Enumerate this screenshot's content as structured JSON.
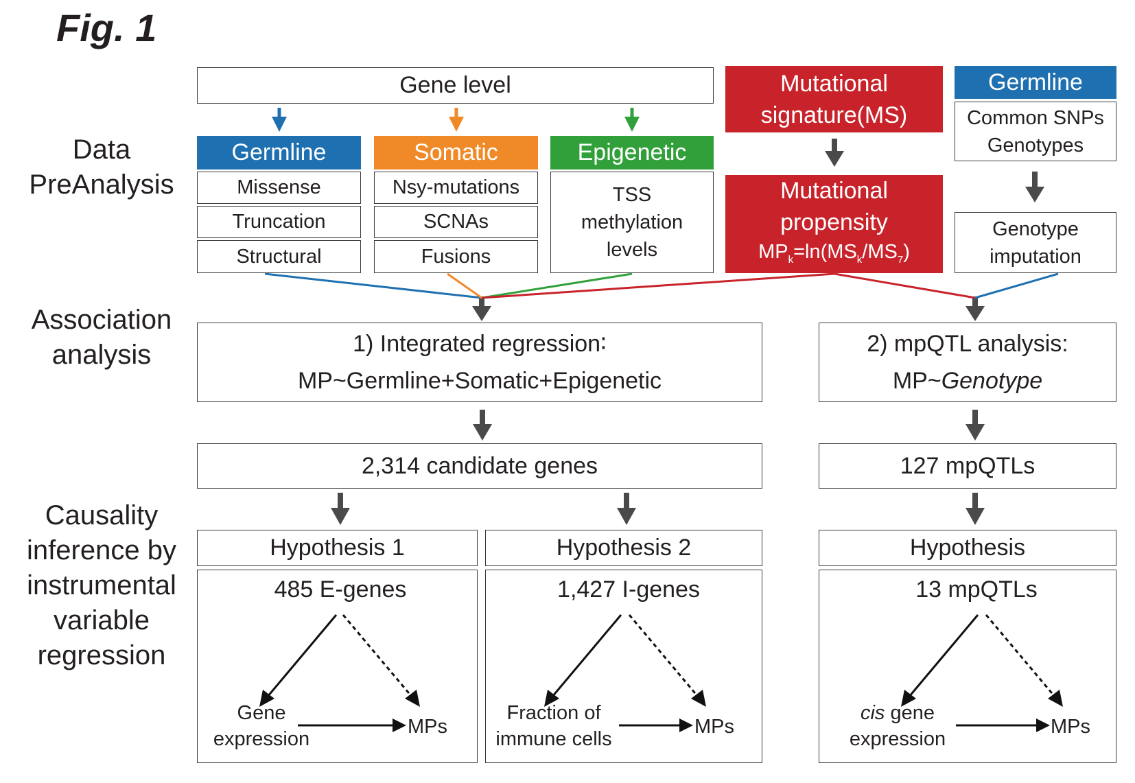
{
  "figure_title": "Fig. 1",
  "row_labels": {
    "data": [
      "Data",
      "PreAnalysis"
    ],
    "association": [
      "Association",
      "analysis"
    ],
    "causality": [
      "Causality",
      "inference by",
      "instrumental",
      "variable",
      "regression"
    ]
  },
  "colors": {
    "germline": "#1f70b0",
    "somatic": "#f08a28",
    "epigenetic": "#31a03a",
    "mutational": "#c8232a",
    "arrow_gray": "#4a4a4a"
  },
  "gene_level": {
    "title": "Gene level",
    "germline": {
      "header": "Germline",
      "items": [
        "Missense",
        "Truncation",
        "Structural"
      ]
    },
    "somatic": {
      "header": "Somatic",
      "items": [
        "Nsy-mutations",
        "SCNAs",
        "Fusions"
      ]
    },
    "epigenetic": {
      "header": "Epigenetic",
      "lines": [
        "TSS",
        "methylation",
        "levels"
      ]
    }
  },
  "mutational_signature": {
    "lines": [
      "Mutational",
      "signature(MS)"
    ]
  },
  "mutational_propensity": {
    "lines": [
      "Mutational",
      "propensity"
    ],
    "formula": {
      "p1": "MP",
      "s1": "k",
      "p2": "=ln(MS",
      "s2": "k",
      "p3": "/MS",
      "s3": "7",
      "p4": ")"
    }
  },
  "germline_right": {
    "header": "Germline",
    "lines": [
      "Common SNPs",
      "Genotypes"
    ],
    "imputation": [
      "Genotype",
      "imputation"
    ]
  },
  "association": {
    "left": {
      "line1": "1) Integrated regression∶",
      "line2": "MP~Germline+Somatic+Epigenetic"
    },
    "right": {
      "line1": "2) mpQTL analysis:",
      "line2_prefix": "MP~",
      "line2_italic": "Genotype"
    }
  },
  "results": {
    "candidate_genes": "2,314 candidate genes",
    "mpqtls": "127 mpQTLs"
  },
  "hypotheses": [
    {
      "title": "Hypothesis 1",
      "count": "485 E-genes",
      "left_lines": [
        "Gene",
        "expression"
      ],
      "right": "MPs"
    },
    {
      "title": "Hypothesis 2",
      "count": "1,427 I-genes",
      "left_lines": [
        "Fraction of",
        "immune cells"
      ],
      "right": "MPs"
    },
    {
      "title": "Hypothesis",
      "count": "13 mpQTLs",
      "left_italic": "cis",
      "left_rest": " gene",
      "left_line2": "expression",
      "right": "MPs"
    }
  ]
}
